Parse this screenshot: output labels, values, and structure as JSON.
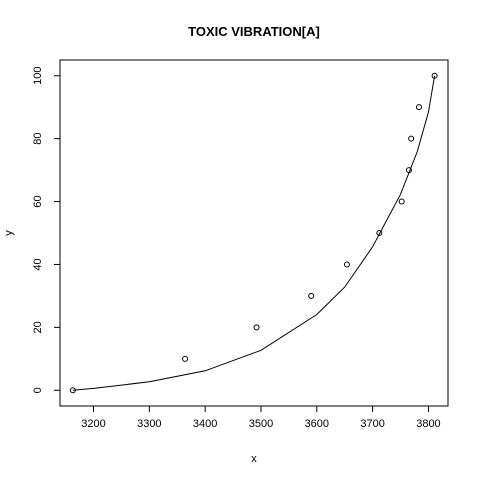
{
  "chart_data": {
    "type": "scatter",
    "title": "TOXIC VIBRATION[A]",
    "xlabel": "x",
    "ylabel": "y",
    "xlim": [
      3140,
      3835
    ],
    "ylim": [
      -5,
      105
    ],
    "x_ticks": [
      3200,
      3300,
      3400,
      3500,
      3600,
      3700,
      3800
    ],
    "y_ticks": [
      0,
      20,
      40,
      60,
      80,
      100
    ],
    "points": [
      {
        "x": 3163,
        "y": 0
      },
      {
        "x": 3364,
        "y": 10
      },
      {
        "x": 3492,
        "y": 20
      },
      {
        "x": 3590,
        "y": 30
      },
      {
        "x": 3654,
        "y": 40
      },
      {
        "x": 3712,
        "y": 50
      },
      {
        "x": 3752,
        "y": 60
      },
      {
        "x": 3765,
        "y": 70
      },
      {
        "x": 3769,
        "y": 80
      },
      {
        "x": 3783,
        "y": 90
      },
      {
        "x": 3811,
        "y": 100
      }
    ],
    "fitted_curve": [
      {
        "x": 3163,
        "y": 0
      },
      {
        "x": 3200,
        "y": 0.6
      },
      {
        "x": 3300,
        "y": 2.7
      },
      {
        "x": 3400,
        "y": 6.2
      },
      {
        "x": 3500,
        "y": 12.7
      },
      {
        "x": 3600,
        "y": 24.1
      },
      {
        "x": 3650,
        "y": 32.8
      },
      {
        "x": 3700,
        "y": 45.6
      },
      {
        "x": 3750,
        "y": 62.3
      },
      {
        "x": 3780,
        "y": 75.9
      },
      {
        "x": 3800,
        "y": 88.5
      },
      {
        "x": 3811,
        "y": 100
      }
    ]
  }
}
